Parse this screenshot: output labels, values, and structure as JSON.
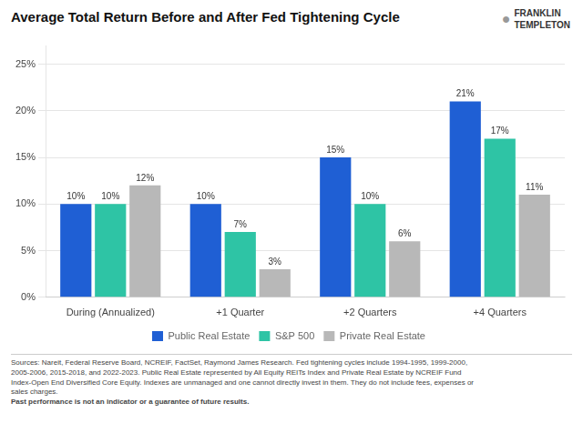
{
  "chart_data": {
    "type": "bar",
    "title": "Average Total Return Before and After Fed Tightening Cycle",
    "categories": [
      "During (Annualized)",
      "+1 Quarter",
      "+2 Quarters",
      "+4 Quarters"
    ],
    "series": [
      {
        "name": "Public Real Estate",
        "color": "#1F5FD4",
        "values": [
          10,
          10,
          15,
          21
        ],
        "value_labels": [
          "10%",
          "10%",
          "15%",
          "21%"
        ]
      },
      {
        "name": "S&P 500",
        "color": "#2EC4A5",
        "values": [
          10,
          7,
          10,
          17
        ],
        "value_labels": [
          "10%",
          "7%",
          "10%",
          "17%"
        ]
      },
      {
        "name": "Private Real Estate",
        "color": "#B8B8B8",
        "values": [
          12,
          3,
          6,
          11
        ],
        "value_labels": [
          "12%",
          "3%",
          "6%",
          "11%"
        ]
      }
    ],
    "ylim": [
      0,
      27
    ],
    "yticks": [
      {
        "value": 0,
        "label": "0%"
      },
      {
        "value": 5,
        "label": "5%"
      },
      {
        "value": 10,
        "label": "10%"
      },
      {
        "value": 15,
        "label": "15%"
      },
      {
        "value": 20,
        "label": "20%"
      },
      {
        "value": 25,
        "label": "25%"
      }
    ],
    "grid": true,
    "legend": "bottom",
    "data_labels": true,
    "annotations": [
      [
        "●"
      ],
      [
        "FRANKLIN",
        "TEMPLETON"
      ],
      [
        "Sources: Nareit, Federal Reserve Board, NCREIF, FactSet, Raymond James Research. Fed tightening cycles include 1994-1995, 1999-2000,",
        "2005-2006, 2015-2018, and 2022-2023. Public Real Estate represented by All Equity REITs Index and Private Real Estate by NCREIF Fund",
        "Index-Open End Diversified Core Equity. Indexes are unmanaged and one cannot directly invest in them. They do not include fees, expenses or",
        "sales charges. ",
        "Past performance is not an indicator or a guarantee of future results."
      ]
    ]
  }
}
